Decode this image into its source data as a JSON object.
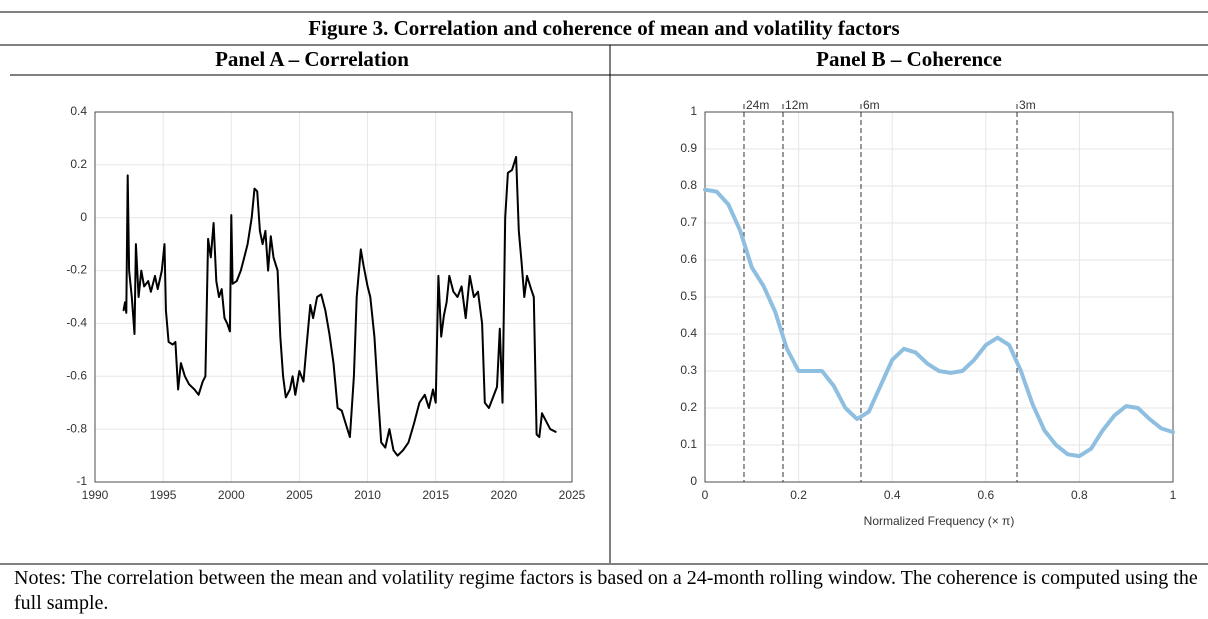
{
  "figure": {
    "title": "Figure 3. Correlation and coherence of mean and volatility factors",
    "notes": "Notes: The correlation between the mean and volatility regime factors is based on a 24-month rolling window. The coherence is computed using the full sample."
  },
  "chart_data": [
    {
      "type": "line",
      "title": "Panel A – Correlation",
      "color": "#000000",
      "grid": true,
      "xlim": [
        1990,
        2025
      ],
      "xticks": [
        1990,
        1995,
        2000,
        2005,
        2010,
        2015,
        2020,
        2025
      ],
      "ylim": [
        -1,
        0.4
      ],
      "yticks": [
        -1,
        -0.8,
        -0.6,
        -0.4,
        -0.2,
        0,
        0.2,
        0.4
      ],
      "x": [
        1992.1,
        1992.2,
        1992.3,
        1992.4,
        1992.5,
        1992.7,
        1992.9,
        1993.0,
        1993.2,
        1993.4,
        1993.6,
        1993.9,
        1994.1,
        1994.4,
        1994.6,
        1994.9,
        1995.1,
        1995.2,
        1995.4,
        1995.7,
        1995.9,
        1996.1,
        1996.3,
        1996.6,
        1996.9,
        1997.3,
        1997.6,
        1997.9,
        1998.1,
        1998.3,
        1998.5,
        1998.7,
        1998.9,
        1999.1,
        1999.3,
        1999.5,
        1999.7,
        1999.9,
        2000.0,
        2000.1,
        2000.4,
        2000.7,
        2000.9,
        2001.2,
        2001.5,
        2001.7,
        2001.9,
        2002.1,
        2002.3,
        2002.5,
        2002.7,
        2002.9,
        2003.1,
        2003.4,
        2003.6,
        2003.8,
        2004.0,
        2004.3,
        2004.5,
        2004.7,
        2005.0,
        2005.3,
        2005.5,
        2005.8,
        2006.0,
        2006.3,
        2006.6,
        2006.9,
        2007.2,
        2007.5,
        2007.8,
        2008.1,
        2008.4,
        2008.7,
        2009.0,
        2009.2,
        2009.5,
        2009.7,
        2010.0,
        2010.2,
        2010.5,
        2010.8,
        2011.0,
        2011.3,
        2011.6,
        2011.9,
        2012.2,
        2012.6,
        2013.0,
        2013.4,
        2013.8,
        2014.2,
        2014.5,
        2014.8,
        2015.0,
        2015.2,
        2015.4,
        2015.6,
        2015.8,
        2016.0,
        2016.3,
        2016.6,
        2016.9,
        2017.2,
        2017.5,
        2017.8,
        2018.1,
        2018.4,
        2018.6,
        2018.9,
        2019.2,
        2019.5,
        2019.7,
        2019.9,
        2020.1,
        2020.3,
        2020.6,
        2020.9,
        2021.1,
        2021.3,
        2021.5,
        2021.7,
        2022.0,
        2022.2,
        2022.4,
        2022.6,
        2022.8,
        2023.1,
        2023.4,
        2023.8
      ],
      "values": [
        -0.35,
        -0.32,
        -0.36,
        0.16,
        -0.2,
        -0.3,
        -0.44,
        -0.1,
        -0.3,
        -0.2,
        -0.26,
        -0.24,
        -0.28,
        -0.22,
        -0.27,
        -0.2,
        -0.1,
        -0.35,
        -0.47,
        -0.48,
        -0.47,
        -0.65,
        -0.55,
        -0.6,
        -0.63,
        -0.65,
        -0.67,
        -0.62,
        -0.6,
        -0.08,
        -0.15,
        -0.02,
        -0.24,
        -0.3,
        -0.27,
        -0.38,
        -0.4,
        -0.43,
        0.01,
        -0.25,
        -0.24,
        -0.2,
        -0.16,
        -0.1,
        0.0,
        0.11,
        0.1,
        -0.05,
        -0.1,
        -0.05,
        -0.2,
        -0.07,
        -0.15,
        -0.2,
        -0.45,
        -0.6,
        -0.68,
        -0.65,
        -0.6,
        -0.67,
        -0.58,
        -0.62,
        -0.5,
        -0.33,
        -0.38,
        -0.3,
        -0.29,
        -0.35,
        -0.44,
        -0.55,
        -0.72,
        -0.73,
        -0.78,
        -0.83,
        -0.6,
        -0.3,
        -0.12,
        -0.18,
        -0.26,
        -0.3,
        -0.45,
        -0.7,
        -0.85,
        -0.87,
        -0.8,
        -0.88,
        -0.9,
        -0.88,
        -0.85,
        -0.78,
        -0.7,
        -0.67,
        -0.72,
        -0.65,
        -0.7,
        -0.22,
        -0.45,
        -0.37,
        -0.32,
        -0.22,
        -0.28,
        -0.3,
        -0.26,
        -0.38,
        -0.22,
        -0.3,
        -0.28,
        -0.4,
        -0.7,
        -0.72,
        -0.68,
        -0.64,
        -0.42,
        -0.7,
        0.0,
        0.17,
        0.18,
        0.23,
        -0.05,
        -0.17,
        -0.3,
        -0.22,
        -0.27,
        -0.3,
        -0.82,
        -0.83,
        -0.74,
        -0.77,
        -0.8,
        -0.81
      ]
    },
    {
      "type": "line",
      "title": "Panel B – Coherence",
      "color": "#8fbfe0",
      "grid": true,
      "xlabel": "Normalized Frequency (× π)",
      "xlim": [
        0,
        1
      ],
      "xticks": [
        0,
        0.2,
        0.4,
        0.6,
        0.8,
        1
      ],
      "ylim": [
        0,
        1
      ],
      "yticks": [
        0,
        0.1,
        0.2,
        0.3,
        0.4,
        0.5,
        0.6,
        0.7,
        0.8,
        0.9,
        1
      ],
      "vlines": [
        {
          "x": 0.0833,
          "label": "24m"
        },
        {
          "x": 0.1667,
          "label": "12m"
        },
        {
          "x": 0.3333,
          "label": "6m"
        },
        {
          "x": 0.6667,
          "label": "3m"
        }
      ],
      "x": [
        0,
        0.025,
        0.05,
        0.075,
        0.1,
        0.125,
        0.15,
        0.175,
        0.2,
        0.225,
        0.25,
        0.275,
        0.3,
        0.325,
        0.35,
        0.375,
        0.4,
        0.425,
        0.45,
        0.475,
        0.5,
        0.525,
        0.55,
        0.575,
        0.6,
        0.625,
        0.65,
        0.675,
        0.7,
        0.725,
        0.75,
        0.775,
        0.8,
        0.825,
        0.85,
        0.875,
        0.9,
        0.925,
        0.95,
        0.975,
        1.0
      ],
      "values": [
        0.79,
        0.785,
        0.75,
        0.68,
        0.58,
        0.53,
        0.46,
        0.36,
        0.3,
        0.3,
        0.3,
        0.26,
        0.2,
        0.17,
        0.19,
        0.26,
        0.33,
        0.36,
        0.35,
        0.32,
        0.3,
        0.295,
        0.3,
        0.33,
        0.37,
        0.39,
        0.37,
        0.3,
        0.21,
        0.14,
        0.1,
        0.075,
        0.07,
        0.09,
        0.14,
        0.18,
        0.205,
        0.2,
        0.17,
        0.145,
        0.135
      ]
    }
  ]
}
